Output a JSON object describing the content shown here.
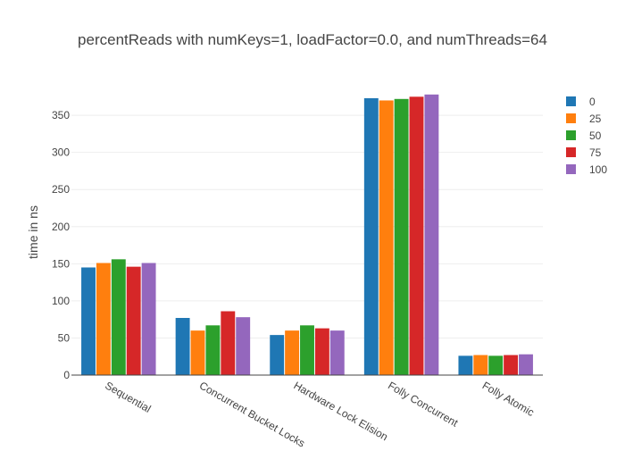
{
  "chart_data": {
    "type": "bar",
    "title": "percentReads with numKeys=1, loadFactor=0.0, and numThreads=64",
    "xlabel": "",
    "ylabel": "time in ns",
    "ylim": [
      0,
      385
    ],
    "yticks": [
      0,
      50,
      100,
      150,
      200,
      250,
      300,
      350
    ],
    "grid": true,
    "legend_position": "top-right",
    "categories": [
      "Sequential",
      "Concurrent Bucket Locks",
      "Hardware Lock Elision",
      "Folly Concurrent",
      "Folly Atomic"
    ],
    "series": [
      {
        "name": "0",
        "color": "#1f77b4",
        "values": [
          145,
          77,
          54,
          373,
          26
        ]
      },
      {
        "name": "25",
        "color": "#ff7f0e",
        "values": [
          151,
          60,
          60,
          370,
          27
        ]
      },
      {
        "name": "50",
        "color": "#2ca02c",
        "values": [
          156,
          67,
          67,
          372,
          26
        ]
      },
      {
        "name": "75",
        "color": "#d62728",
        "values": [
          146,
          86,
          63,
          375,
          27
        ]
      },
      {
        "name": "100",
        "color": "#9467bd",
        "values": [
          151,
          78,
          60,
          378,
          28
        ]
      }
    ]
  }
}
